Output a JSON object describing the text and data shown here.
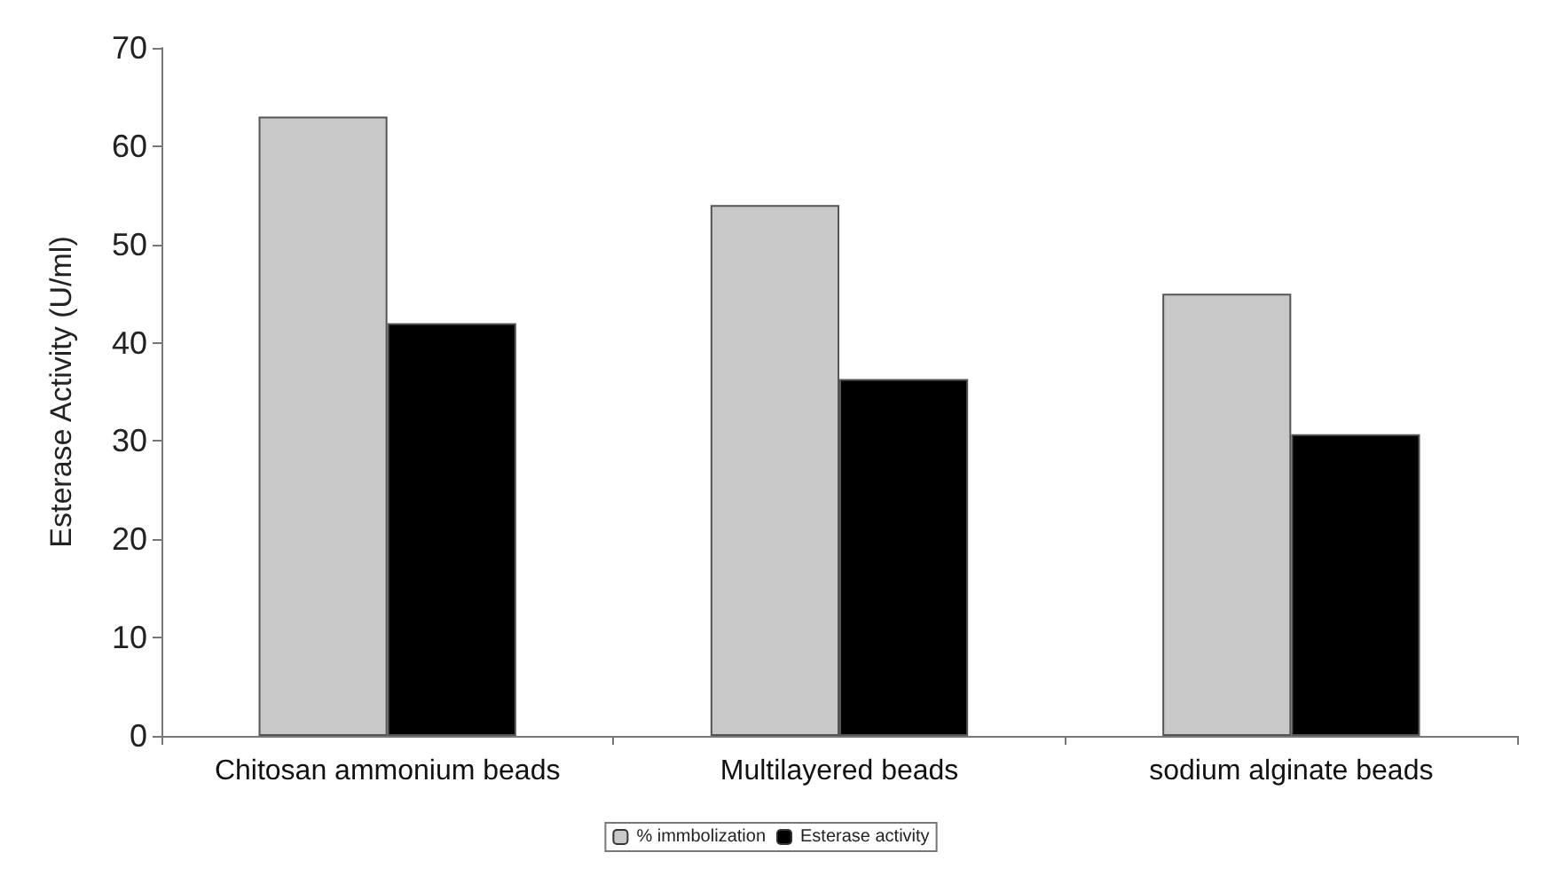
{
  "chart_data": {
    "type": "bar",
    "ylabel": "Esterase Activity (U/ml)",
    "categories": [
      "Chitosan ammonium beads",
      "Multilayered beads",
      "sodium alginate beads"
    ],
    "series": [
      {
        "name": "% immbolization",
        "color": "#c8c8c8",
        "values": [
          63,
          54,
          45
        ]
      },
      {
        "name": "Esterase activity",
        "color": "#000000",
        "values": [
          42,
          36.3,
          30.7
        ]
      }
    ],
    "ylim": [
      0,
      70
    ],
    "yticks": [
      0,
      10,
      20,
      30,
      40,
      50,
      60,
      70
    ],
    "grid": false,
    "legend": "bottom"
  }
}
